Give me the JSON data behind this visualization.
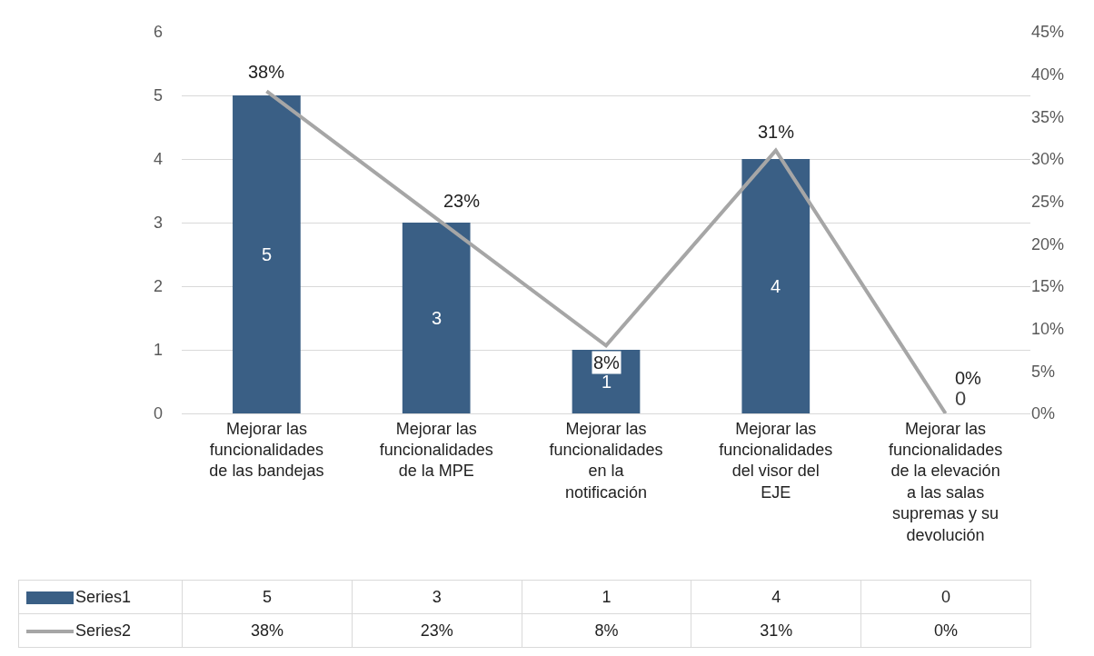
{
  "chart_data": {
    "type": "bar",
    "categories": [
      "Mejorar las funcionalidades de las bandejas",
      "Mejorar las funcionalidades de la MPE",
      "Mejorar las funcionalidades en la notificación",
      "Mejorar las funcionalidades del visor del EJE",
      "Mejorar las funcionalidades de la elevación a las salas supremas y su devolución"
    ],
    "series": [
      {
        "name": "Series1",
        "color": "#3a5f85",
        "values": [
          5,
          3,
          1,
          4,
          0
        ],
        "value_labels": [
          "5",
          "3",
          "1",
          "4",
          "0"
        ]
      },
      {
        "name": "Series2",
        "type": "line",
        "axis": "y2",
        "color": "#a6a6a6",
        "values": [
          38,
          23,
          8,
          31,
          0
        ],
        "value_labels": [
          "38%",
          "23%",
          "8%",
          "31%",
          "0%"
        ]
      }
    ],
    "ylim": [
      0,
      6
    ],
    "yticks": [
      0,
      1,
      2,
      3,
      4,
      5,
      6
    ],
    "y2lim": [
      0,
      45
    ],
    "y2ticks": [
      {
        "value": 0,
        "label": "0%"
      },
      {
        "value": 5,
        "label": "5%"
      },
      {
        "value": 10,
        "label": "10%"
      },
      {
        "value": 15,
        "label": "15%"
      },
      {
        "value": 20,
        "label": "20%"
      },
      {
        "value": 25,
        "label": "25%"
      },
      {
        "value": 30,
        "label": "30%"
      },
      {
        "value": 35,
        "label": "35%"
      },
      {
        "value": 40,
        "label": "40%"
      },
      {
        "value": 45,
        "label": "45%"
      }
    ],
    "grid": "y",
    "legend": "bottom"
  }
}
